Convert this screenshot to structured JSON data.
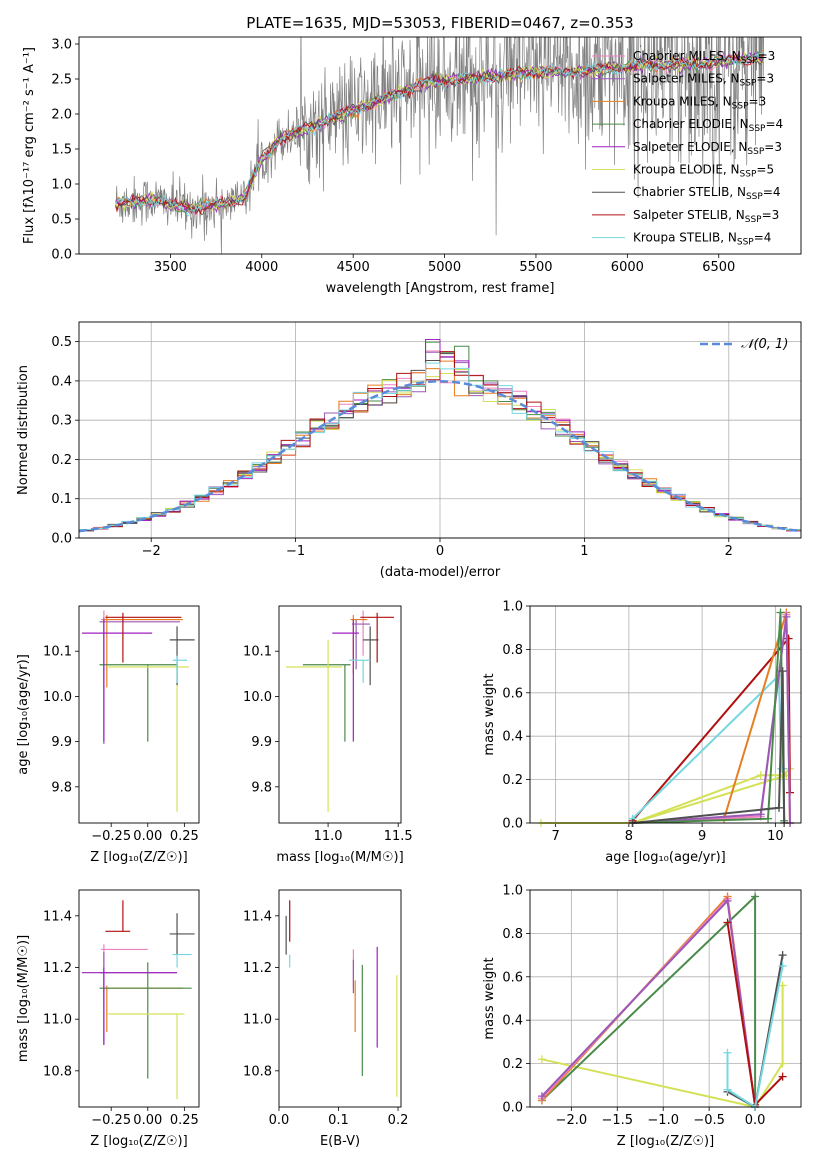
{
  "colors": {
    "chabrier_miles": "#f080c0",
    "salpeter_miles": "#9b59b6",
    "kroupa_miles": "#e67e22",
    "chabrier_elodie": "#4a8a4a",
    "salpeter_elodie": "#a020c0",
    "kroupa_elodie": "#d4e157",
    "chabrier_stelib": "#505050",
    "salpeter_stelib": "#b01010",
    "kroupa_stelib": "#76d7e0",
    "data_gray": "#808080",
    "normal_line": "#5b8bd8"
  },
  "chart_data": [
    {
      "id": "spectrum",
      "type": "line",
      "title": "PLATE=1635, MJD=53053, FIBERID=0467, z=0.353",
      "xlabel": "wavelength [Angstrom, rest frame]",
      "ylabel": "Flux [fλ10⁻¹⁷ erg cm⁻² s⁻¹ A⁻¹]",
      "xlim": [
        3000,
        6950
      ],
      "ylim": [
        0,
        3.1
      ],
      "xticks": [
        "3500",
        "4000",
        "4500",
        "5000",
        "5500",
        "6000",
        "6500"
      ],
      "yticks": [
        "0.0",
        "0.5",
        "1.0",
        "1.5",
        "2.0",
        "2.5",
        "3.0"
      ],
      "legend_position": "top-right",
      "legend": [
        {
          "label": "Chabrier MILES, N",
          "sub": "SSP",
          "n": "=3",
          "key": "chabrier_miles"
        },
        {
          "label": "Salpeter MILES, N",
          "sub": "SSP",
          "n": "=3",
          "key": "salpeter_miles"
        },
        {
          "label": "Kroupa MILES, N",
          "sub": "SSP",
          "n": "=3",
          "key": "kroupa_miles"
        },
        {
          "label": "Chabrier ELODIE, N",
          "sub": "SSP",
          "n": "=4",
          "key": "chabrier_elodie"
        },
        {
          "label": "Salpeter ELODIE, N",
          "sub": "SSP",
          "n": "=3",
          "key": "salpeter_elodie"
        },
        {
          "label": "Kroupa ELODIE, N",
          "sub": "SSP",
          "n": "=5",
          "key": "kroupa_elodie"
        },
        {
          "label": "Chabrier STELIB, N",
          "sub": "SSP",
          "n": "=4",
          "key": "chabrier_stelib"
        },
        {
          "label": "Salpeter STELIB, N",
          "sub": "SSP",
          "n": "=3",
          "key": "salpeter_stelib"
        },
        {
          "label": "Kroupa STELIB, N",
          "sub": "SSP",
          "n": "=4",
          "key": "kroupa_stelib"
        }
      ],
      "model_trend": {
        "x": [
          3200,
          3400,
          3600,
          3800,
          3900,
          4000,
          4100,
          4300,
          4500,
          4700,
          4900,
          5100,
          5300,
          5500,
          5700,
          5900,
          6100,
          6300,
          6500,
          6700
        ],
        "y": [
          0.72,
          0.78,
          0.65,
          0.72,
          0.8,
          1.35,
          1.65,
          1.85,
          2.05,
          2.25,
          2.45,
          2.5,
          2.55,
          2.6,
          2.6,
          2.65,
          2.7,
          2.7,
          2.75,
          2.8
        ]
      }
    },
    {
      "id": "residuals",
      "type": "histogram",
      "xlabel": "(data-model)/error",
      "ylabel": "Normed distribution",
      "xlim": [
        -2.5,
        2.5
      ],
      "ylim": [
        0,
        0.55
      ],
      "xticks": [
        "−2",
        "−1",
        "0",
        "1",
        "2"
      ],
      "yticks": [
        "0.0",
        "0.1",
        "0.2",
        "0.3",
        "0.4",
        "0.5"
      ],
      "grid": true,
      "legend_position": "top-right",
      "normal_label": "𝒩(0, 1)",
      "bin_width": 0.1
    },
    {
      "id": "age_vs_Z",
      "type": "errorbar",
      "xlabel": "Z [log₁₀(Z/Z☉)]",
      "ylabel": "age  [log₁₀(age/yr)]",
      "xlim": [
        -0.47,
        0.35
      ],
      "ylim": [
        9.72,
        10.2
      ],
      "xticks": [
        "−0.25",
        "0.00",
        "0.25"
      ],
      "yticks": [
        "9.8",
        "9.9",
        "10.0",
        "10.1"
      ],
      "points": [
        {
          "key": "chabrier_miles",
          "x": -0.3,
          "y": 10.17,
          "xerr": [
            0.02,
            0.52
          ],
          "yerr": [
            0.15,
            0.02
          ]
        },
        {
          "key": "salpeter_miles",
          "x": -0.3,
          "y": 10.165,
          "xerr": [
            0.03,
            0.52
          ],
          "yerr": [
            0.27,
            0.01
          ]
        },
        {
          "key": "kroupa_miles",
          "x": -0.28,
          "y": 10.17,
          "xerr": [
            0.02,
            0.52
          ],
          "yerr": [
            0.15,
            0.01
          ]
        },
        {
          "key": "chabrier_elodie",
          "x": 0.0,
          "y": 10.07,
          "xerr": [
            0.33,
            0.2
          ],
          "yerr": [
            0.17,
            0.0
          ]
        },
        {
          "key": "salpeter_elodie",
          "x": -0.3,
          "y": 10.14,
          "xerr": [
            0.15,
            0.33
          ],
          "yerr": [
            0.24,
            0.03
          ]
        },
        {
          "key": "kroupa_elodie",
          "x": 0.2,
          "y": 10.065,
          "xerr": [
            0.47,
            0.08
          ],
          "yerr": [
            0.32,
            0.01
          ]
        },
        {
          "key": "chabrier_stelib",
          "x": 0.2,
          "y": 10.125,
          "xerr": [
            0.05,
            0.12
          ],
          "yerr": [
            0.1,
            0.03
          ]
        },
        {
          "key": "salpeter_stelib",
          "x": -0.17,
          "y": 10.175,
          "xerr": [
            0.12,
            0.4
          ],
          "yerr": [
            0.1,
            0.01
          ]
        },
        {
          "key": "kroupa_stelib",
          "x": 0.2,
          "y": 10.08,
          "xerr": [
            0.03,
            0.07
          ],
          "yerr": [
            0.05,
            0.01
          ]
        }
      ]
    },
    {
      "id": "age_vs_mass",
      "type": "errorbar",
      "xlabel": "mass [log₁₀(M/M☉)]",
      "ylabel": "",
      "xlim": [
        10.65,
        11.52
      ],
      "ylim": [
        9.72,
        10.2
      ],
      "xticks": [
        "11.0",
        "11.5"
      ],
      "yticks": [
        "9.8",
        "9.9",
        "10.0",
        "10.1"
      ],
      "points": [
        {
          "key": "chabrier_miles",
          "x": 11.25,
          "y": 10.17,
          "xerr": [
            0.0,
            0.02
          ],
          "yerr": [
            0.08,
            0.02
          ]
        },
        {
          "key": "salpeter_miles",
          "x": 11.2,
          "y": 10.16,
          "xerr": [
            0.03,
            0.1
          ],
          "yerr": [
            0.1,
            0.01
          ]
        },
        {
          "key": "kroupa_miles",
          "x": 11.18,
          "y": 10.17,
          "xerr": [
            0.02,
            0.1
          ],
          "yerr": [
            0.12,
            0.01
          ]
        },
        {
          "key": "chabrier_elodie",
          "x": 11.12,
          "y": 10.07,
          "xerr": [
            0.3,
            0.04
          ],
          "yerr": [
            0.17,
            0.0
          ]
        },
        {
          "key": "salpeter_elodie",
          "x": 11.18,
          "y": 10.14,
          "xerr": [
            0.15,
            0.04
          ],
          "yerr": [
            0.24,
            0.03
          ]
        },
        {
          "key": "kroupa_elodie",
          "x": 11.0,
          "y": 10.065,
          "xerr": [
            0.3,
            0.1
          ],
          "yerr": [
            0.32,
            0.06
          ]
        },
        {
          "key": "chabrier_stelib",
          "x": 11.3,
          "y": 10.125,
          "xerr": [
            0.05,
            0.06
          ],
          "yerr": [
            0.1,
            0.03
          ]
        },
        {
          "key": "salpeter_stelib",
          "x": 11.35,
          "y": 10.175,
          "xerr": [
            0.12,
            0.12
          ],
          "yerr": [
            0.1,
            0.01
          ]
        },
        {
          "key": "kroupa_stelib",
          "x": 11.25,
          "y": 10.08,
          "xerr": [
            0.1,
            0.05
          ],
          "yerr": [
            0.05,
            0.0
          ]
        }
      ]
    },
    {
      "id": "weight_vs_age",
      "type": "line",
      "xlabel": "age  [log₁₀(age/yr)]",
      "ylabel": "mass weight",
      "xlim": [
        6.65,
        10.35
      ],
      "ylim": [
        0,
        1.0
      ],
      "xticks": [
        "7",
        "8",
        "9",
        "10"
      ],
      "yticks": [
        "0.0",
        "0.2",
        "0.4",
        "0.6",
        "0.8",
        "1.0"
      ],
      "grid": true,
      "series": [
        {
          "key": "kroupa_elodie",
          "x": [
            6.8,
            8.05,
            10.15
          ],
          "y": [
            0.0,
            0.0,
            0.22
          ]
        },
        {
          "key": "kroupa_elodie",
          "x": [
            8.05,
            9.8,
            10.1,
            10.2
          ],
          "y": [
            0.0,
            0.22,
            0.22,
            0.25
          ]
        },
        {
          "key": "salpeter_stelib",
          "x": [
            8.05,
            10.18,
            10.2
          ],
          "y": [
            0.01,
            0.85,
            0.14
          ]
        },
        {
          "key": "kroupa_stelib",
          "x": [
            8.05,
            10.05,
            10.08,
            10.1
          ],
          "y": [
            0.02,
            0.68,
            0.25,
            0.25
          ]
        },
        {
          "key": "kroupa_miles",
          "x": [
            8.05,
            9.3,
            10.15,
            10.2
          ],
          "y": [
            0.0,
            0.02,
            0.97,
            0.0
          ]
        },
        {
          "key": "chabrier_miles",
          "x": [
            8.05,
            9.8,
            10.15,
            10.2
          ],
          "y": [
            0.0,
            0.03,
            0.96,
            0.0
          ]
        },
        {
          "key": "salpeter_miles",
          "x": [
            8.05,
            9.8,
            10.15,
            10.2
          ],
          "y": [
            0.0,
            0.04,
            0.95,
            0.0
          ]
        },
        {
          "key": "chabrier_elodie",
          "x": [
            8.05,
            9.9,
            10.07,
            10.12
          ],
          "y": [
            0.0,
            0.02,
            0.97,
            0.01
          ]
        },
        {
          "key": "chabrier_stelib",
          "x": [
            8.05,
            10.05,
            10.1,
            10.12
          ],
          "y": [
            0.0,
            0.07,
            0.7,
            0.0
          ]
        }
      ]
    },
    {
      "id": "mass_vs_Z",
      "type": "errorbar",
      "xlabel": "Z [log₁₀(Z/Z☉)]",
      "ylabel": "mass [log₁₀(M/M☉)]",
      "xlim": [
        -0.47,
        0.35
      ],
      "ylim": [
        10.66,
        11.5
      ],
      "xticks": [
        "−0.25",
        "0.00",
        "0.25"
      ],
      "yticks": [
        "10.8",
        "11.0",
        "11.2",
        "11.4"
      ],
      "points": [
        {
          "key": "chabrier_miles",
          "x": -0.3,
          "y": 11.27,
          "xerr": [
            0.02,
            0.3
          ],
          "yerr": [
            0.2,
            0.02
          ]
        },
        {
          "key": "salpeter_miles",
          "x": -0.3,
          "y": 11.18,
          "xerr": [
            0.03,
            0.5
          ],
          "yerr": [
            0.28,
            0.08
          ]
        },
        {
          "key": "kroupa_miles",
          "x": -0.28,
          "y": 11.12,
          "xerr": [
            0.02,
            0.52
          ],
          "yerr": [
            0.17,
            0.01
          ]
        },
        {
          "key": "chabrier_elodie",
          "x": 0.0,
          "y": 11.12,
          "xerr": [
            0.33,
            0.3
          ],
          "yerr": [
            0.35,
            0.1
          ]
        },
        {
          "key": "salpeter_elodie",
          "x": -0.3,
          "y": 11.18,
          "xerr": [
            0.15,
            0.5
          ],
          "yerr": [
            0.28,
            0.02
          ]
        },
        {
          "key": "kroupa_elodie",
          "x": 0.2,
          "y": 11.02,
          "xerr": [
            0.47,
            0.05
          ],
          "yerr": [
            0.33,
            0.0
          ]
        },
        {
          "key": "chabrier_stelib",
          "x": 0.2,
          "y": 11.33,
          "xerr": [
            0.05,
            0.12
          ],
          "yerr": [
            0.08,
            0.08
          ]
        },
        {
          "key": "salpeter_stelib",
          "x": -0.17,
          "y": 11.34,
          "xerr": [
            0.12,
            0.05
          ],
          "yerr": [
            0.0,
            0.12
          ]
        },
        {
          "key": "kroupa_stelib",
          "x": 0.2,
          "y": 11.25,
          "xerr": [
            0.03,
            0.1
          ],
          "yerr": [
            0.05,
            0.0
          ]
        }
      ]
    },
    {
      "id": "mass_vs_ebv",
      "type": "errorbar",
      "xlabel": "E(B-V)",
      "ylabel": "",
      "xlim": [
        0.0,
        0.205
      ],
      "ylim": [
        10.66,
        11.5
      ],
      "xticks": [
        "0.0",
        "0.1",
        "0.2"
      ],
      "yticks": [
        "10.8",
        "11.0",
        "11.2",
        "11.4"
      ],
      "points": [
        {
          "key": "chabrier_miles",
          "x": 0.125,
          "y": 11.2,
          "xerr": [
            0,
            0
          ],
          "yerr": [
            0.08,
            0.07
          ]
        },
        {
          "key": "salpeter_miles",
          "x": 0.125,
          "y": 11.18,
          "xerr": [
            0,
            0
          ],
          "yerr": [
            0.08,
            0.05
          ]
        },
        {
          "key": "kroupa_miles",
          "x": 0.128,
          "y": 11.12,
          "xerr": [
            0,
            0
          ],
          "yerr": [
            0.17,
            0.03
          ]
        },
        {
          "key": "chabrier_elodie",
          "x": 0.14,
          "y": 11.05,
          "xerr": [
            0,
            0
          ],
          "yerr": [
            0.27,
            0.16
          ]
        },
        {
          "key": "salpeter_elodie",
          "x": 0.165,
          "y": 11.1,
          "xerr": [
            0,
            0
          ],
          "yerr": [
            0.21,
            0.18
          ]
        },
        {
          "key": "kroupa_elodie",
          "x": 0.198,
          "y": 10.95,
          "xerr": [
            0,
            0
          ],
          "yerr": [
            0.25,
            0.22
          ]
        },
        {
          "key": "chabrier_stelib",
          "x": 0.012,
          "y": 11.32,
          "xerr": [
            0,
            0
          ],
          "yerr": [
            0.07,
            0.08
          ]
        },
        {
          "key": "salpeter_stelib",
          "x": 0.018,
          "y": 11.38,
          "xerr": [
            0,
            0
          ],
          "yerr": [
            0.08,
            0.08
          ]
        },
        {
          "key": "kroupa_stelib",
          "x": 0.018,
          "y": 11.25,
          "xerr": [
            0,
            0
          ],
          "yerr": [
            0.05,
            0.0
          ]
        }
      ]
    },
    {
      "id": "weight_vs_Z",
      "type": "line",
      "xlabel": "Z [log₁₀(Z/Z☉)]",
      "ylabel": "mass weight",
      "xlim": [
        -2.45,
        0.5
      ],
      "ylim": [
        0,
        1.0
      ],
      "xticks": [
        "−2.0",
        "−1.5",
        "−1.0",
        "−0.5",
        "0.0"
      ],
      "yticks": [
        "0.0",
        "0.2",
        "0.4",
        "0.6",
        "0.8",
        "1.0"
      ],
      "grid": true,
      "series": [
        {
          "key": "kroupa_elodie",
          "x": [
            -2.32,
            0.0,
            0.3,
            0.3
          ],
          "y": [
            0.22,
            0.0,
            0.2,
            0.56
          ]
        },
        {
          "key": "chabrier_elodie",
          "x": [
            -2.32,
            0.0,
            0.0
          ],
          "y": [
            0.03,
            0.97,
            0.0
          ]
        },
        {
          "key": "kroupa_miles",
          "x": [
            -2.32,
            -0.3,
            0.0
          ],
          "y": [
            0.03,
            0.97,
            0.0
          ]
        },
        {
          "key": "chabrier_miles",
          "x": [
            -2.32,
            -0.3,
            0.0
          ],
          "y": [
            0.04,
            0.96,
            0.0
          ]
        },
        {
          "key": "salpeter_miles",
          "x": [
            -2.32,
            -0.3,
            0.0
          ],
          "y": [
            0.05,
            0.95,
            0.0
          ]
        },
        {
          "key": "salpeter_stelib",
          "x": [
            -0.3,
            0.0,
            0.3
          ],
          "y": [
            0.85,
            0.01,
            0.14
          ]
        },
        {
          "key": "chabrier_stelib",
          "x": [
            -0.3,
            0.0,
            0.3
          ],
          "y": [
            0.07,
            0.0,
            0.7
          ]
        },
        {
          "key": "kroupa_stelib",
          "x": [
            -0.3,
            -0.3,
            0.0,
            0.3
          ],
          "y": [
            0.25,
            0.08,
            0.0,
            0.65
          ]
        }
      ]
    }
  ]
}
